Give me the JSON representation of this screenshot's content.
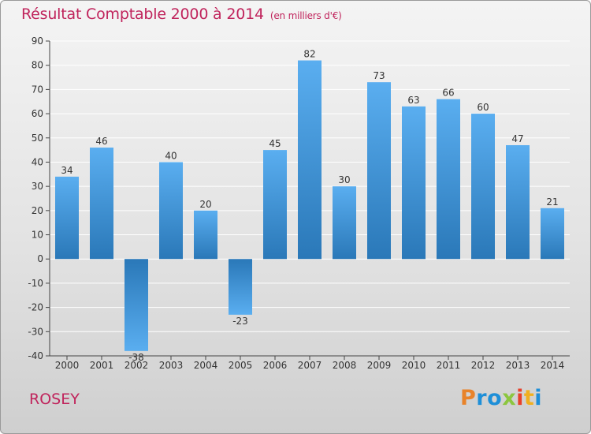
{
  "title": "Résultat Comptable 2000 à 2014",
  "title_unit": "(en milliers d'€)",
  "commune": "ROSEY",
  "logo": {
    "letters": [
      "P",
      "r",
      "o",
      "x",
      "i",
      "t",
      "i"
    ],
    "colors": [
      "#e8832a",
      "#1e8fd8",
      "#1e8fd8",
      "#8cc63f",
      "#e8402a",
      "#f0b020",
      "#1e8fd8"
    ]
  },
  "colors": {
    "accent": "#c0245c",
    "bar_top": "#5aaef0",
    "bar_bottom": "#2a78b8"
  },
  "chart_data": {
    "type": "bar",
    "title": "Résultat Comptable 2000 à 2014 (en milliers d'€)",
    "xlabel": "",
    "ylabel": "",
    "categories": [
      "2000",
      "2001",
      "2002",
      "2003",
      "2004",
      "2005",
      "2006",
      "2007",
      "2008",
      "2009",
      "2010",
      "2011",
      "2012",
      "2013",
      "2014"
    ],
    "values": [
      34,
      46,
      -38,
      40,
      20,
      -23,
      45,
      82,
      30,
      73,
      63,
      66,
      60,
      47,
      21
    ],
    "ylim": [
      -40,
      90
    ],
    "yticks": [
      90,
      80,
      70,
      60,
      50,
      40,
      30,
      20,
      10,
      0,
      -10,
      -20,
      -30,
      -40
    ],
    "grid": "horizontal"
  }
}
